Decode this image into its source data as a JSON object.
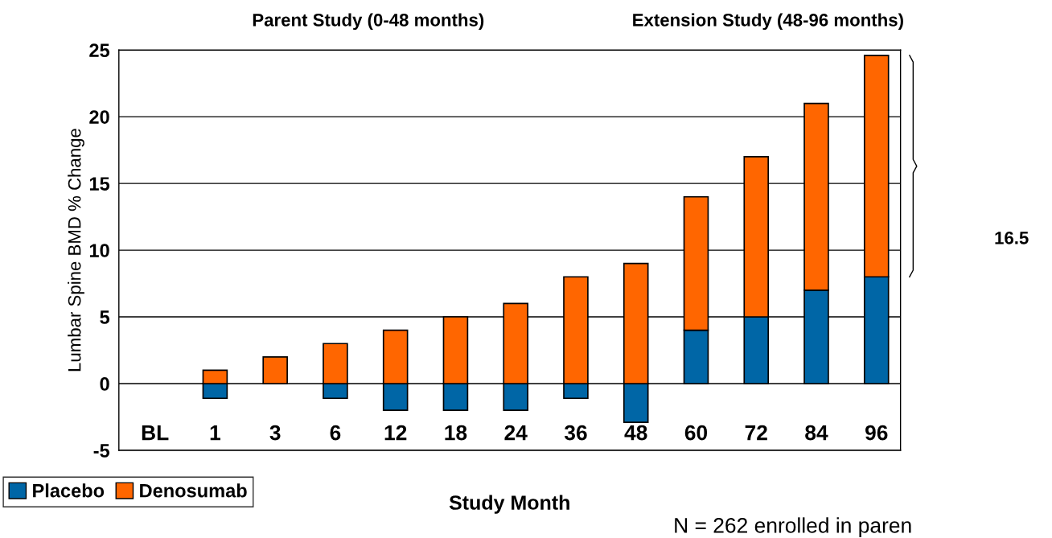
{
  "chart_data": {
    "type": "bar",
    "stacked": true,
    "categories": [
      "BL",
      "1",
      "3",
      "6",
      "12",
      "18",
      "24",
      "36",
      "48",
      "60",
      "72",
      "84",
      "96"
    ],
    "series": [
      {
        "name": "Placebo",
        "color": "#0066a6",
        "values": [
          null,
          -1.1,
          null,
          -1.1,
          -2,
          -2,
          -2,
          -1.1,
          -2.9,
          4,
          5,
          7,
          8
        ]
      },
      {
        "name": "Denosumab",
        "color": "#ff6600",
        "values": [
          null,
          1,
          2,
          3,
          4,
          5,
          6,
          8,
          9,
          10,
          12,
          14,
          16.6
        ]
      }
    ],
    "ylabel": "Lumbar Spine BMD % Change",
    "xlabel": "Study Month",
    "ylim": [
      -5,
      25
    ],
    "yticks": [
      -5,
      0,
      5,
      10,
      15,
      20,
      25
    ],
    "grid": "y",
    "legend": "bottom left",
    "annotations": [
      "Parent Study (0-48 months)",
      "Extension Study (48-96 months)",
      "16.5",
      "N = 262 enrolled in paren"
    ]
  }
}
